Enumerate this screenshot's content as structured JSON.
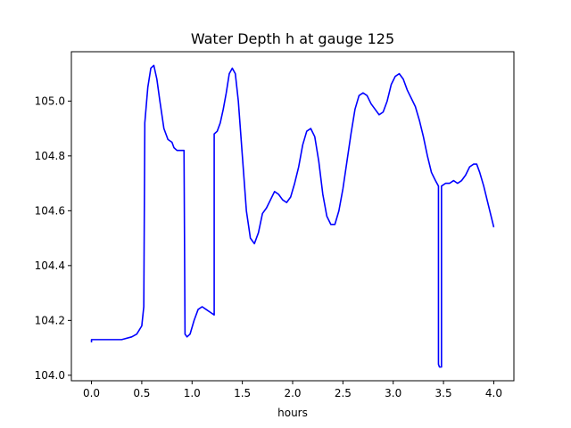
{
  "chart_data": {
    "type": "line",
    "title": "Water Depth h at gauge 125",
    "xlabel": "hours",
    "ylabel": "",
    "xlim": [
      -0.2,
      4.2
    ],
    "ylim": [
      103.98,
      105.18
    ],
    "xticks": [
      0.0,
      0.5,
      1.0,
      1.5,
      2.0,
      2.5,
      3.0,
      3.5,
      4.0
    ],
    "xtick_labels": [
      "0.0",
      "0.5",
      "1.0",
      "1.5",
      "2.0",
      "2.5",
      "3.0",
      "3.5",
      "4.0"
    ],
    "yticks": [
      104.0,
      104.2,
      104.4,
      104.6,
      104.8,
      105.0
    ],
    "ytick_labels": [
      "104.0",
      "104.2",
      "104.4",
      "104.6",
      "104.8",
      "105.0"
    ],
    "grid": false,
    "legend": "none",
    "color": "#0000ff",
    "series": [
      {
        "x": [
          0.0,
          0.0,
          0.05,
          0.1,
          0.2,
          0.3,
          0.4,
          0.45,
          0.5,
          0.52,
          0.53,
          0.53,
          0.56,
          0.59,
          0.62,
          0.65,
          0.68,
          0.72,
          0.76,
          0.8,
          0.82,
          0.85,
          0.88,
          0.92,
          0.93,
          0.95,
          0.98,
          1.02,
          1.06,
          1.1,
          1.14,
          1.18,
          1.22,
          1.22,
          1.25,
          1.28,
          1.31,
          1.34,
          1.37,
          1.4,
          1.43,
          1.46,
          1.5,
          1.54,
          1.58,
          1.62,
          1.66,
          1.7,
          1.74,
          1.78,
          1.82,
          1.86,
          1.9,
          1.94,
          1.98,
          2.02,
          2.06,
          2.1,
          2.14,
          2.18,
          2.22,
          2.26,
          2.3,
          2.34,
          2.38,
          2.42,
          2.46,
          2.5,
          2.54,
          2.58,
          2.62,
          2.66,
          2.7,
          2.74,
          2.78,
          2.82,
          2.86,
          2.9,
          2.94,
          2.98,
          3.02,
          3.06,
          3.1,
          3.14,
          3.18,
          3.22,
          3.26,
          3.3,
          3.34,
          3.38,
          3.42,
          3.45,
          3.45,
          3.46,
          3.48,
          3.48,
          3.52,
          3.56,
          3.6,
          3.64,
          3.68,
          3.72,
          3.76,
          3.8,
          3.83,
          3.86,
          3.9,
          3.94,
          3.98,
          4.0
        ],
        "y": [
          104.12,
          104.13,
          104.13,
          104.13,
          104.13,
          104.13,
          104.14,
          104.15,
          104.18,
          104.25,
          104.9,
          104.92,
          105.05,
          105.12,
          105.13,
          105.08,
          105.0,
          104.9,
          104.86,
          104.85,
          104.83,
          104.82,
          104.82,
          104.82,
          104.15,
          104.14,
          104.15,
          104.2,
          104.24,
          104.25,
          104.24,
          104.23,
          104.22,
          104.88,
          104.89,
          104.92,
          104.97,
          105.03,
          105.1,
          105.12,
          105.1,
          105.0,
          104.8,
          104.6,
          104.5,
          104.48,
          104.52,
          104.59,
          104.61,
          104.64,
          104.67,
          104.66,
          104.64,
          104.63,
          104.65,
          104.7,
          104.76,
          104.84,
          104.89,
          104.9,
          104.87,
          104.78,
          104.66,
          104.58,
          104.55,
          104.55,
          104.6,
          104.68,
          104.78,
          104.88,
          104.97,
          105.02,
          105.03,
          105.02,
          104.99,
          104.97,
          104.95,
          104.96,
          105.0,
          105.06,
          105.09,
          105.1,
          105.08,
          105.04,
          105.01,
          104.98,
          104.93,
          104.87,
          104.8,
          104.74,
          104.71,
          104.69,
          104.04,
          104.03,
          104.03,
          104.69,
          104.7,
          104.7,
          104.71,
          104.7,
          104.71,
          104.73,
          104.76,
          104.77,
          104.77,
          104.74,
          104.69,
          104.63,
          104.57,
          104.54
        ]
      }
    ]
  }
}
